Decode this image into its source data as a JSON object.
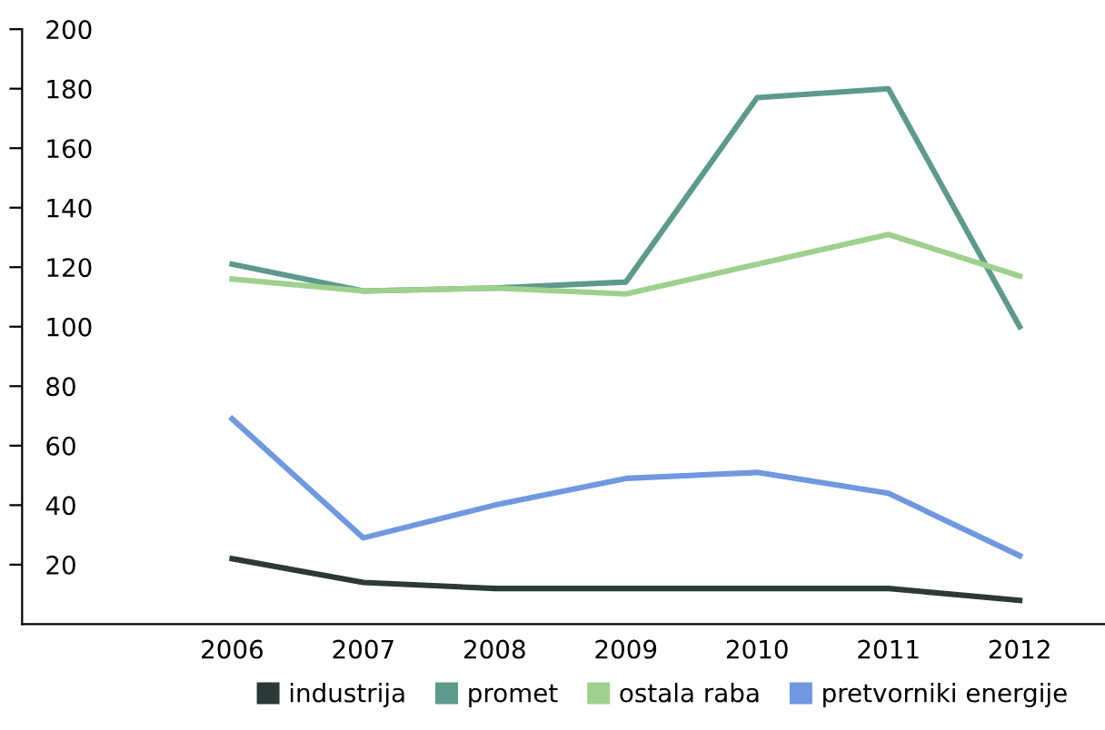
{
  "chart_data": {
    "type": "line",
    "categories": [
      "2006",
      "2007",
      "2008",
      "2009",
      "2010",
      "2011",
      "2012"
    ],
    "series": [
      {
        "name": "industrija",
        "color": "#2b3a36",
        "values": [
          22,
          14,
          12,
          12,
          12,
          12,
          8
        ]
      },
      {
        "name": "promet",
        "color": "#5e9a8c",
        "values": [
          121,
          112,
          113,
          115,
          177,
          180,
          100
        ]
      },
      {
        "name": "ostala raba",
        "color": "#9fd08e",
        "values": [
          116,
          112,
          113,
          111,
          121,
          131,
          117
        ]
      },
      {
        "name": "pretvorniki energije",
        "color": "#6f98e0",
        "values": [
          69,
          29,
          40,
          49,
          51,
          44,
          23
        ]
      }
    ],
    "ylim": [
      0,
      200
    ],
    "yticks": [
      20,
      40,
      60,
      80,
      100,
      120,
      140,
      160,
      180,
      200
    ],
    "grid": false,
    "legend": "bottom",
    "marker": "none",
    "line_style": "solid"
  }
}
